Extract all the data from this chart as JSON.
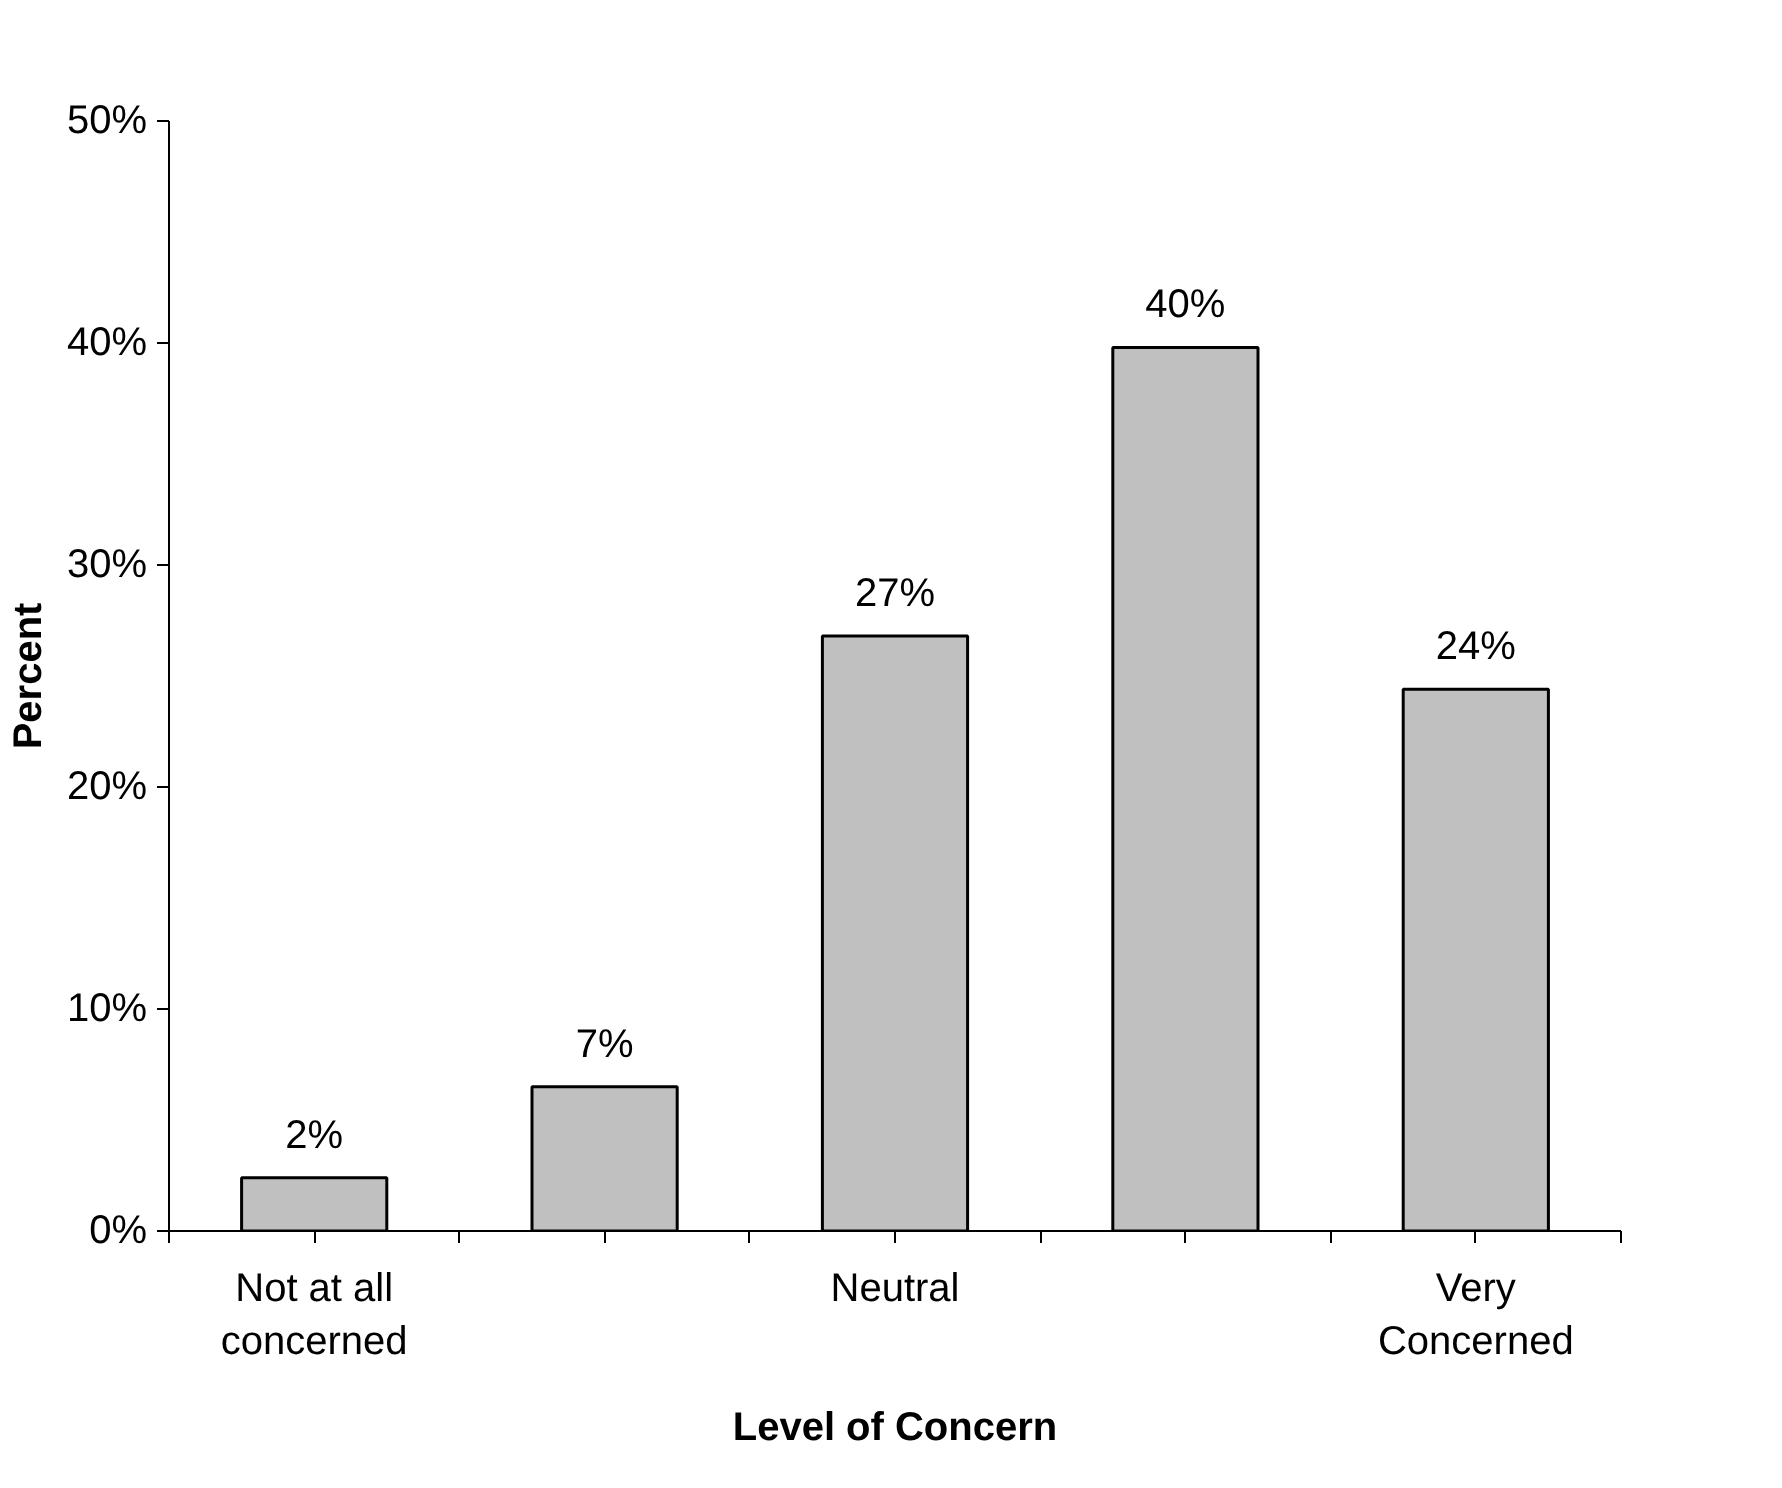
{
  "chart_data": {
    "type": "bar",
    "xlabel": "Level of Concern",
    "ylabel": "Percent",
    "categories": [
      "Not at all\nconcerned",
      null,
      "Neutral",
      null,
      "Very\nConcerned"
    ],
    "values": [
      2.4,
      6.5,
      26.8,
      39.8,
      24.4
    ],
    "value_labels": [
      "2%",
      "7%",
      "27%",
      "40%",
      "24%"
    ],
    "color": "#c0c0c0",
    "ylim": [
      0,
      50
    ],
    "yticks": [
      {
        "value": 0,
        "label": "0%"
      },
      {
        "value": 10,
        "label": "10%"
      },
      {
        "value": 20,
        "label": "20%"
      },
      {
        "value": 30,
        "label": "30%"
      },
      {
        "value": 40,
        "label": "40%"
      },
      {
        "value": 50,
        "label": "50%"
      }
    ],
    "grid": false
  }
}
